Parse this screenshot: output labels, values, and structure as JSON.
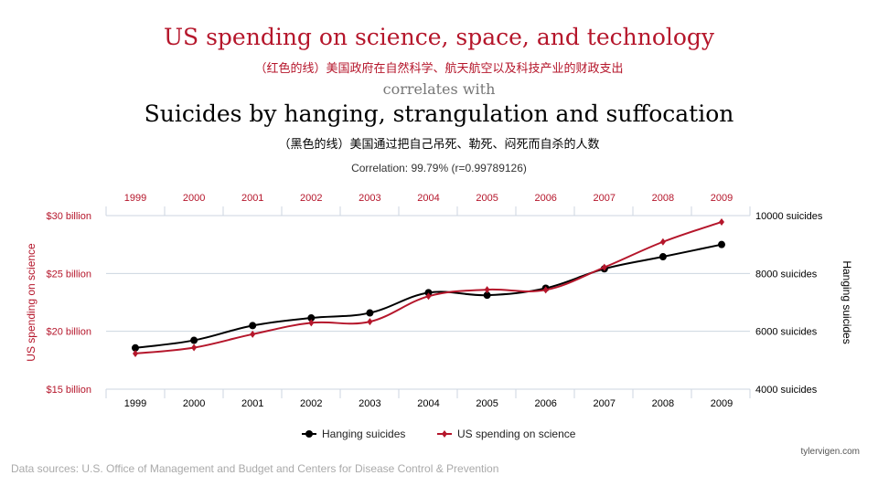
{
  "title": "US spending on science, space, and technology",
  "title_cn": "（红色的线）美国政府在自然科学、航天航空以及科技产业的财政支出",
  "correlates": "correlates with",
  "title2": "Suicides by hanging, strangulation and suffocation",
  "title2_cn": "（黑色的线）美国通过把自己吊死、勒死、闷死而自杀的人数",
  "correlation": "Correlation: 99.79% (r=0.99789126)",
  "source": "Data sources: U.S. Office of Management and Budget and Centers for Disease Control & Prevention",
  "site": "tylervigen.com",
  "chart_data": {
    "type": "line",
    "categories": [
      "1999",
      "2000",
      "2001",
      "2002",
      "2003",
      "2004",
      "2005",
      "2006",
      "2007",
      "2008",
      "2009"
    ],
    "ylabel_left": "US spending on science",
    "ylabel_right": "Hanging suicides",
    "ylim_left": [
      15,
      30
    ],
    "ylim_right": [
      4000,
      10000
    ],
    "yticks_left": [
      "$15 billion",
      "$20 billion",
      "$25 billion",
      "$30 billion"
    ],
    "yticks_right": [
      "4000 suicides",
      "6000 suicides",
      "8000 suicides",
      "10000 suicides"
    ],
    "legend_position": "bottom",
    "grid": true,
    "series": [
      {
        "name": "Hanging suicides",
        "axis": "right",
        "color": "#000000",
        "marker": "circle",
        "values": [
          5427,
          5688,
          6198,
          6462,
          6635,
          7336,
          7248,
          7491,
          8161,
          8578,
          9000
        ]
      },
      {
        "name": "US spending on science",
        "axis": "left",
        "color": "#b5162b",
        "marker": "diamond",
        "values": [
          18.08,
          18.59,
          19.75,
          20.73,
          20.83,
          23.03,
          23.6,
          23.58,
          25.53,
          27.73,
          29.45
        ]
      }
    ]
  }
}
